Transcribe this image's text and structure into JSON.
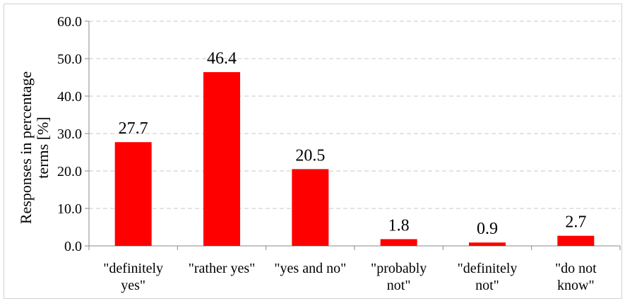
{
  "chart_data": {
    "type": "bar",
    "title": "",
    "xlabel": "",
    "ylabel_lines": [
      "Responses in percentage",
      "terms [%]"
    ],
    "categories": [
      [
        "\"definitely",
        "yes\""
      ],
      [
        "\"rather yes\""
      ],
      [
        "\"yes and no\""
      ],
      [
        "\"probably",
        "not\""
      ],
      [
        "\"definitely",
        "not\""
      ],
      [
        "\"do not",
        "know\""
      ]
    ],
    "values": [
      27.7,
      46.4,
      20.5,
      1.8,
      0.9,
      2.7
    ],
    "data_labels": [
      "27.7",
      "46.4",
      "20.5",
      "1.8",
      "0.9",
      "2.7"
    ],
    "ylim": [
      0,
      60
    ],
    "yticks": [
      "0.0",
      "10.0",
      "20.0",
      "30.0",
      "40.0",
      "50.0",
      "60.0"
    ],
    "grid": true,
    "legend": "none",
    "bar_color": "#ff0000",
    "grid_color": "#c8c8c8"
  }
}
